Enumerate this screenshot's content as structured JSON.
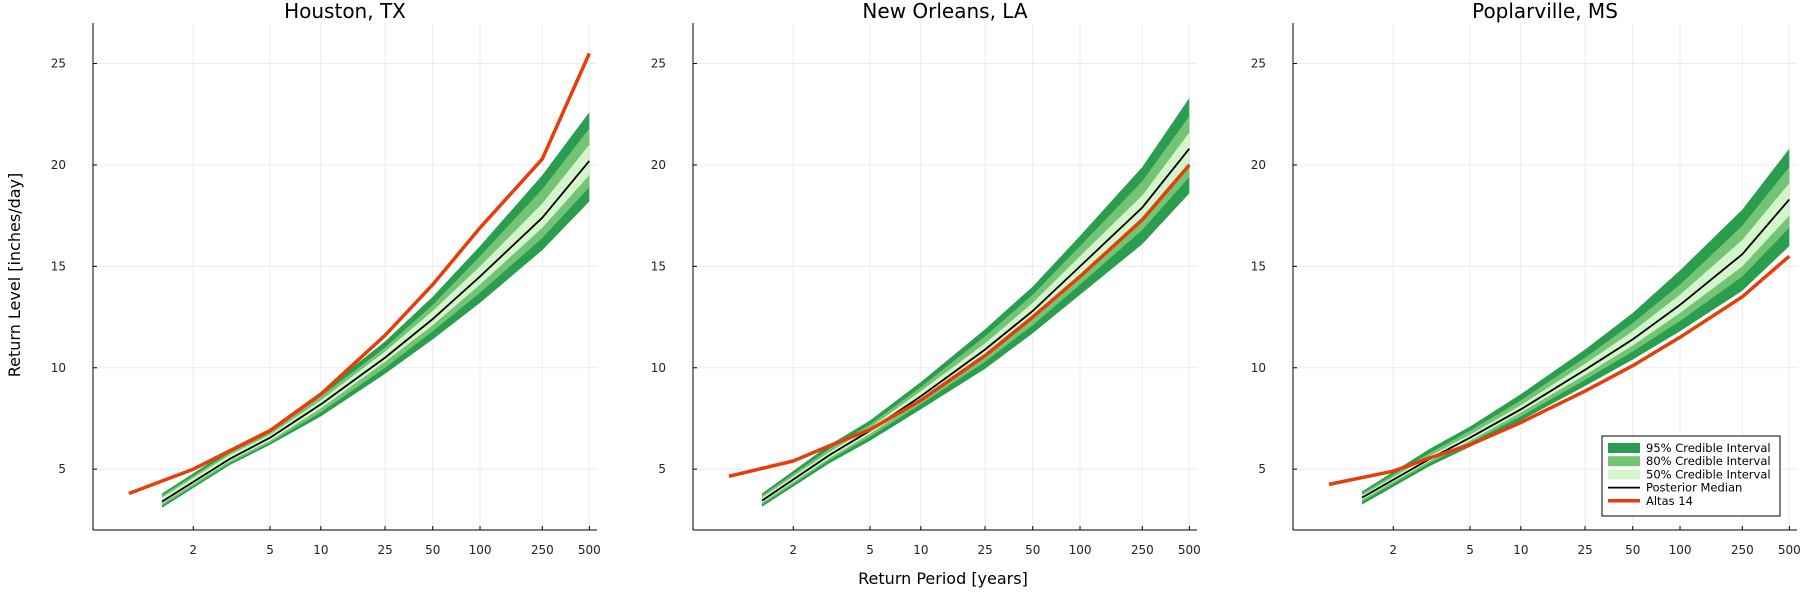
{
  "figure": {
    "ylabel": "Return Level [inches/day]",
    "xlabel": "Return Period [years]"
  },
  "colors": {
    "ci95": "#2a9d4f",
    "ci80": "#74c476",
    "ci50": "#d4f5cc",
    "median": "#000000",
    "atlas": "#e63e0a",
    "grid": "#ececec",
    "axis": "#000000"
  },
  "legend": {
    "placement": "bottom-right of third panel",
    "items": [
      {
        "label": "95% Credible Interval",
        "kind": "box",
        "color_key": "ci95"
      },
      {
        "label": "80% Credible Interval",
        "kind": "box",
        "color_key": "ci80"
      },
      {
        "label": "50% Credible Interval",
        "kind": "box",
        "color_key": "ci50"
      },
      {
        "label": "Posterior Median",
        "kind": "line",
        "color_key": "median"
      },
      {
        "label": "Altas 14",
        "kind": "line",
        "color_key": "atlas"
      }
    ]
  },
  "chart_data": [
    {
      "type": "line",
      "title": "Houston, TX",
      "x_scale": "log (exceedance)",
      "xticks": [
        2,
        5,
        10,
        25,
        50,
        100,
        250,
        500
      ],
      "yticks": [
        5,
        10,
        15,
        20,
        25
      ],
      "ylim": [
        2,
        27
      ],
      "grid": true,
      "x": [
        1.5,
        3,
        5,
        10,
        25,
        50,
        100,
        250,
        500
      ],
      "median": [
        3.4,
        5.5,
        6.55,
        8.2,
        10.5,
        12.4,
        14.5,
        17.4,
        20.2
      ],
      "ci50": [
        [
          3.3,
          3.6
        ],
        [
          5.4,
          5.7
        ],
        [
          6.4,
          6.7
        ],
        [
          8.0,
          8.4
        ],
        [
          10.3,
          10.8
        ],
        [
          12.1,
          12.8
        ],
        [
          14.1,
          15.0
        ],
        [
          16.9,
          18.1
        ],
        [
          19.5,
          21.0
        ]
      ],
      "ci80": [
        [
          3.2,
          3.7
        ],
        [
          5.3,
          5.8
        ],
        [
          6.3,
          6.8
        ],
        [
          7.8,
          8.6
        ],
        [
          10.0,
          11.0
        ],
        [
          11.8,
          13.1
        ],
        [
          13.7,
          15.5
        ],
        [
          16.4,
          18.8
        ],
        [
          18.9,
          21.8
        ]
      ],
      "ci95": [
        [
          3.1,
          3.8
        ],
        [
          5.2,
          5.95
        ],
        [
          6.2,
          6.95
        ],
        [
          7.6,
          8.8
        ],
        [
          9.7,
          11.3
        ],
        [
          11.4,
          13.5
        ],
        [
          13.2,
          16.0
        ],
        [
          15.8,
          19.5
        ],
        [
          18.2,
          22.6
        ]
      ],
      "atlas_x": [
        1.2,
        2,
        3,
        5,
        10,
        25,
        50,
        100,
        250,
        500
      ],
      "atlas": [
        3.8,
        5.0,
        5.9,
        6.9,
        8.7,
        11.6,
        14.1,
        16.9,
        20.3,
        25.5
      ]
    },
    {
      "type": "line",
      "title": "New Orleans, LA",
      "x_scale": "log (exceedance)",
      "xticks": [
        2,
        5,
        10,
        25,
        50,
        100,
        250,
        500
      ],
      "yticks": [
        5,
        10,
        15,
        20,
        25
      ],
      "ylim": [
        2,
        27
      ],
      "grid": true,
      "x": [
        1.5,
        3,
        5,
        10,
        25,
        50,
        100,
        250,
        500
      ],
      "median": [
        3.45,
        5.7,
        6.9,
        8.6,
        10.9,
        12.8,
        15.0,
        17.9,
        20.8
      ],
      "ci50": [
        [
          3.35,
          3.6
        ],
        [
          5.55,
          5.85
        ],
        [
          6.75,
          7.05
        ],
        [
          8.4,
          8.85
        ],
        [
          10.6,
          11.2
        ],
        [
          12.5,
          13.2
        ],
        [
          14.6,
          15.5
        ],
        [
          17.4,
          18.5
        ],
        [
          20.1,
          21.6
        ]
      ],
      "ci80": [
        [
          3.25,
          3.7
        ],
        [
          5.45,
          6.0
        ],
        [
          6.6,
          7.2
        ],
        [
          8.2,
          9.05
        ],
        [
          10.3,
          11.55
        ],
        [
          12.1,
          13.6
        ],
        [
          14.1,
          16.0
        ],
        [
          16.8,
          19.2
        ],
        [
          19.4,
          22.4
        ]
      ],
      "ci95": [
        [
          3.15,
          3.8
        ],
        [
          5.3,
          6.2
        ],
        [
          6.4,
          7.4
        ],
        [
          7.95,
          9.3
        ],
        [
          9.95,
          11.9
        ],
        [
          11.7,
          14.0
        ],
        [
          13.6,
          16.5
        ],
        [
          16.1,
          19.9
        ],
        [
          18.6,
          23.3
        ]
      ],
      "atlas_x": [
        1.2,
        2,
        3,
        5,
        10,
        25,
        50,
        100,
        250,
        500
      ],
      "atlas": [
        4.65,
        5.4,
        6.15,
        6.95,
        8.4,
        10.6,
        12.5,
        14.5,
        17.3,
        20.0
      ]
    },
    {
      "type": "line",
      "title": "Poplarville, MS",
      "x_scale": "log (exceedance)",
      "xticks": [
        2,
        5,
        10,
        25,
        50,
        100,
        250,
        500
      ],
      "yticks": [
        5,
        10,
        15,
        20,
        25
      ],
      "ylim": [
        2,
        27
      ],
      "grid": true,
      "x": [
        1.5,
        3,
        5,
        10,
        25,
        50,
        100,
        250,
        500
      ],
      "median": [
        3.6,
        5.5,
        6.55,
        7.95,
        9.9,
        11.4,
        13.1,
        15.6,
        18.3
      ],
      "ci50": [
        [
          3.5,
          3.7
        ],
        [
          5.4,
          5.65
        ],
        [
          6.4,
          6.7
        ],
        [
          7.8,
          8.15
        ],
        [
          9.65,
          10.2
        ],
        [
          11.1,
          11.8
        ],
        [
          12.7,
          13.6
        ],
        [
          15.0,
          16.3
        ],
        [
          17.5,
          19.1
        ]
      ],
      "ci80": [
        [
          3.4,
          3.8
        ],
        [
          5.3,
          5.8
        ],
        [
          6.3,
          6.9
        ],
        [
          7.6,
          8.4
        ],
        [
          9.4,
          10.5
        ],
        [
          10.8,
          12.2
        ],
        [
          12.3,
          14.1
        ],
        [
          14.5,
          17.0
        ],
        [
          16.9,
          19.9
        ]
      ],
      "ci95": [
        [
          3.25,
          3.9
        ],
        [
          5.15,
          6.0
        ],
        [
          6.1,
          7.1
        ],
        [
          7.4,
          8.7
        ],
        [
          9.1,
          10.9
        ],
        [
          10.4,
          12.7
        ],
        [
          11.8,
          14.8
        ],
        [
          13.8,
          17.8
        ],
        [
          16.0,
          20.8
        ]
      ],
      "atlas_x": [
        1.2,
        2,
        3,
        5,
        10,
        25,
        50,
        100,
        250,
        500
      ],
      "atlas": [
        4.25,
        4.9,
        5.55,
        6.2,
        7.3,
        8.85,
        10.1,
        11.5,
        13.5,
        15.5
      ]
    }
  ]
}
